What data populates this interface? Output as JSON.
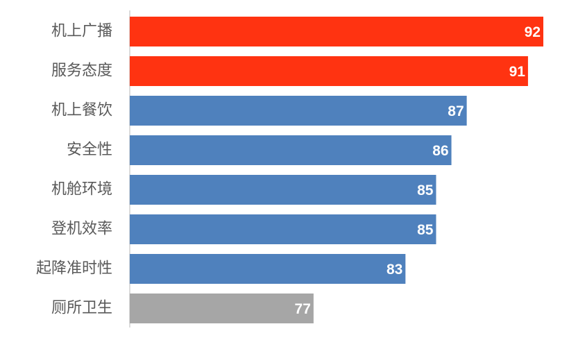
{
  "chart_data": {
    "type": "hbar",
    "categories": [
      "机上广播",
      "服务态度",
      "机上餐饮",
      "安全性",
      "机舱环境",
      "登机效率",
      "起降准时性",
      "厕所卫生"
    ],
    "values": [
      92,
      91,
      87,
      86,
      85,
      85,
      83,
      77
    ],
    "colors": [
      "#ff3311",
      "#ff3311",
      "#4f81bd",
      "#4f81bd",
      "#4f81bd",
      "#4f81bd",
      "#4f81bd",
      "#a6a6a6"
    ],
    "xlim": [
      65,
      92
    ]
  }
}
